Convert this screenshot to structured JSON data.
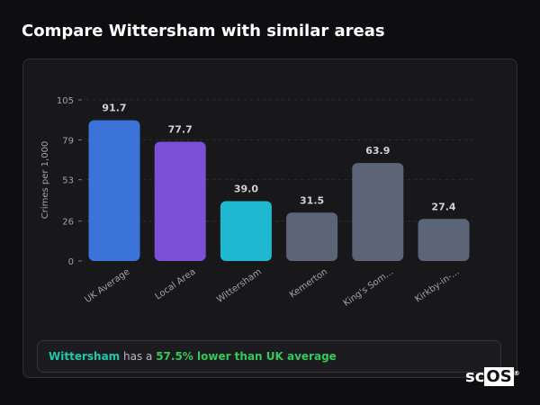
{
  "header": {
    "title": "Compare Wittersham with similar areas"
  },
  "chart_data": {
    "type": "bar",
    "categories": [
      "UK Average",
      "Local Area",
      "Wittersham",
      "Kemerton",
      "King's Som...",
      "Kirkby-in-..."
    ],
    "values": [
      91.7,
      77.7,
      39.0,
      31.5,
      63.9,
      27.4
    ],
    "value_labels": [
      "91.7",
      "77.7",
      "39.0",
      "31.5",
      "63.9",
      "27.4"
    ],
    "colors": [
      "#3b73d9",
      "#7b4fd6",
      "#1fb8d0",
      "#5b6577",
      "#5b6577",
      "#5b6577"
    ],
    "ylabel": "Crimes per 1,000",
    "yticks": [
      0,
      26,
      53,
      79,
      105
    ],
    "ylim": [
      0,
      105
    ],
    "grid": true
  },
  "summary": {
    "place": "Wittersham",
    "middle": " has a ",
    "highlight": "57.5% lower than UK average"
  },
  "logo": {
    "text_a": "sc",
    "text_b": "OS",
    "mark": "®"
  }
}
